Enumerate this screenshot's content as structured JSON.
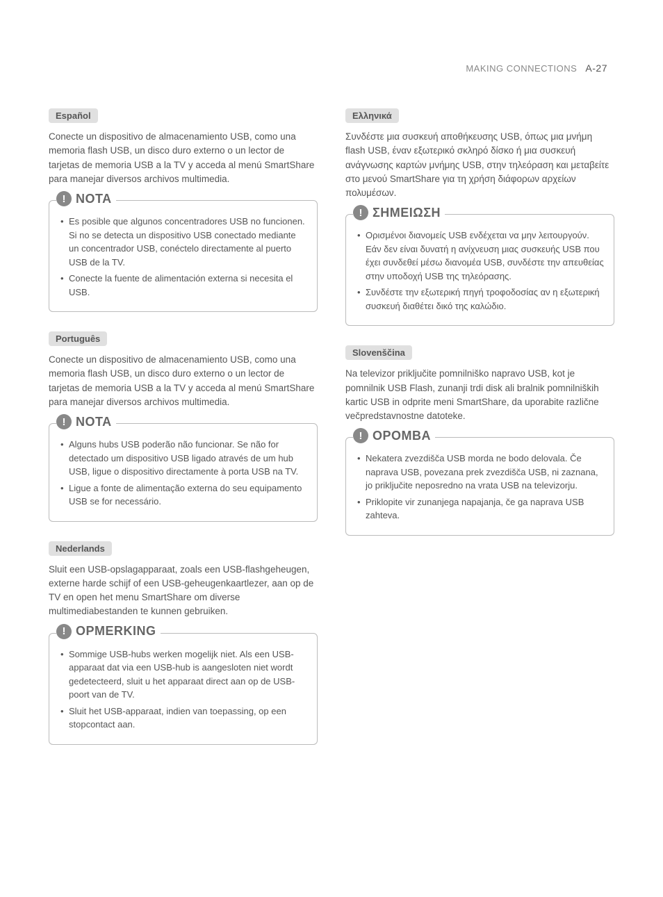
{
  "header": {
    "section_title": "MAKING CONNECTIONS",
    "page_number": "A-27"
  },
  "left_column": {
    "sections": [
      {
        "lang": "Español",
        "body": "Conecte un dispositivo de almacenamiento USB, como una memoria flash USB, un disco duro externo o un lector de tarjetas de memoria USB a la TV y acceda al menú SmartShare para manejar diversos archivos multimedia.",
        "note_heading": "NOTA",
        "notes": [
          "Es posible que algunos concentradores USB no funcionen. Si no se detecta un dispositivo USB conectado mediante un concentrador USB, conéctelo directamente al puerto USB de la TV.",
          "Conecte la fuente de alimentación externa si necesita el USB."
        ]
      },
      {
        "lang": "Português",
        "body": "Conecte un dispositivo de almacenamiento USB, como una memoria flash USB, un disco duro externo o un lector de tarjetas de memoria USB a la TV y acceda al menú SmartShare para manejar diversos archivos multimedia.",
        "note_heading": "NOTA",
        "notes": [
          "Alguns hubs USB poderão não funcionar. Se não for detectado um dispositivo USB ligado através de um hub USB, ligue o dispositivo directamente à porta USB na TV.",
          "Ligue a fonte de alimentação externa do seu equipamento USB se for necessário."
        ]
      },
      {
        "lang": "Nederlands",
        "body": "Sluit een USB-opslagapparaat, zoals een USB-flashgeheugen, externe harde schijf of een USB-geheugenkaartlezer, aan op de TV en open het menu SmartShare om diverse multimediabestanden te kunnen gebruiken.",
        "note_heading": "OPMERKING",
        "notes": [
          "Sommige USB-hubs werken mogelijk niet. Als een USB-apparaat dat via een USB-hub is aangesloten niet wordt gedetecteerd, sluit u het apparaat direct aan op de USB-poort van de TV.",
          "Sluit het USB-apparaat, indien van toepassing, op een stopcontact aan."
        ]
      }
    ]
  },
  "right_column": {
    "sections": [
      {
        "lang": "Ελληνικά",
        "body": "Συνδέστε μια συσκευή αποθήκευσης USB, όπως μια μνήμη flash USB, έναν εξωτερικό σκληρό δίσκο ή μια συσκευή ανάγνωσης καρτών μνήμης USB, στην τηλεόραση και μεταβείτε στο μενού SmartShare για τη χρήση διάφορων αρχείων πολυμέσων.",
        "note_heading": "ΣΗΜΕΙΩΣΗ",
        "notes": [
          "Ορισμένοι διανομείς USB ενδέχεται να μην λειτουργούν. Εάν δεν είναι δυνατή η ανίχνευση μιας συσκευής USB που έχει συνδεθεί μέσω διανομέα USB, συνδέστε την απευθείας στην υποδοχή USB της τηλεόρασης.",
          "Συνδέστε την εξωτερική πηγή τροφοδοσίας αν η εξωτερική συσκευή διαθέτει δικό της καλώδιο."
        ]
      },
      {
        "lang": "Slovenščina",
        "body": "Na televizor priključite pomnilniško napravo USB, kot je pomnilnik USB Flash, zunanji trdi disk ali bralnik pomnilniških kartic USB in odprite meni SmartShare, da uporabite različne večpredstavnostne datoteke.",
        "note_heading": "OPOMBA",
        "notes": [
          "Nekatera zvezdišča USB morda ne bodo delovala. Če naprava USB, povezana prek zvezdišča USB, ni zaznana, jo priključite neposredno na vrata USB na televizorju.",
          "Priklopite vir zunanjega napajanja, če ga naprava USB zahteva."
        ]
      }
    ]
  }
}
